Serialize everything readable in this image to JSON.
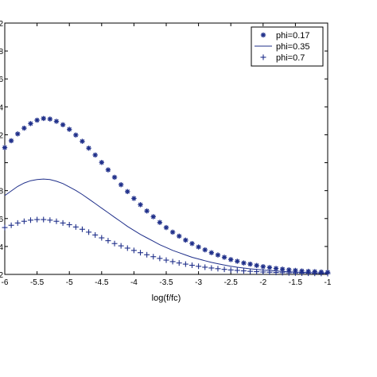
{
  "chart_data": {
    "type": "line",
    "xlabel": "log(f/fc)",
    "ylabel": "",
    "xlim": [
      -6,
      -1
    ],
    "ylim": [
      0,
      2.2
    ],
    "grid": false,
    "legend_position": "top-right",
    "x_ticks": [
      "-6",
      "-5.5",
      "-5",
      "-4.5",
      "-4",
      "-3.5",
      "-3",
      "-2.5",
      "-2",
      "-1.5",
      "-1"
    ],
    "y_ticks": [
      "2",
      "8",
      "6",
      "4",
      "2",
      "",
      "8",
      "6",
      "4",
      "2"
    ],
    "colors": {
      "series": "#1f2f8a"
    },
    "series": [
      {
        "name": "phi=0.17",
        "marker": "asterisk",
        "x": [
          -6.0,
          -5.9,
          -5.8,
          -5.7,
          -5.6,
          -5.5,
          -5.4,
          -5.3,
          -5.2,
          -5.1,
          -5.0,
          -4.9,
          -4.8,
          -4.7,
          -4.6,
          -4.5,
          -4.4,
          -4.3,
          -4.2,
          -4.1,
          -4.0,
          -3.9,
          -3.8,
          -3.7,
          -3.6,
          -3.5,
          -3.4,
          -3.3,
          -3.2,
          -3.1,
          -3.0,
          -2.9,
          -2.8,
          -2.7,
          -2.6,
          -2.5,
          -2.4,
          -2.3,
          -2.2,
          -2.1,
          -2.0,
          -1.9,
          -1.8,
          -1.7,
          -1.6,
          -1.5,
          -1.4,
          -1.3,
          -1.2,
          -1.1,
          -1.0
        ],
        "values": [
          1.11,
          1.17,
          1.23,
          1.28,
          1.32,
          1.35,
          1.365,
          1.36,
          1.34,
          1.31,
          1.27,
          1.22,
          1.165,
          1.105,
          1.045,
          0.98,
          0.915,
          0.85,
          0.785,
          0.725,
          0.665,
          0.61,
          0.555,
          0.505,
          0.455,
          0.41,
          0.37,
          0.335,
          0.3,
          0.27,
          0.24,
          0.215,
          0.19,
          0.17,
          0.15,
          0.13,
          0.115,
          0.1,
          0.09,
          0.078,
          0.068,
          0.06,
          0.052,
          0.046,
          0.04,
          0.035,
          0.03,
          0.027,
          0.024,
          0.021,
          0.019
        ]
      },
      {
        "name": "phi=0.35",
        "marker": "line",
        "x": [
          -6.0,
          -5.9,
          -5.8,
          -5.7,
          -5.6,
          -5.5,
          -5.4,
          -5.3,
          -5.2,
          -5.1,
          -5.0,
          -4.9,
          -4.8,
          -4.7,
          -4.6,
          -4.5,
          -4.4,
          -4.3,
          -4.2,
          -4.1,
          -4.0,
          -3.9,
          -3.8,
          -3.7,
          -3.6,
          -3.5,
          -3.4,
          -3.3,
          -3.2,
          -3.1,
          -3.0,
          -2.9,
          -2.8,
          -2.7,
          -2.6,
          -2.5,
          -2.4,
          -2.3,
          -2.2,
          -2.1,
          -2.0,
          -1.9,
          -1.8,
          -1.7,
          -1.6,
          -1.5,
          -1.4,
          -1.3,
          -1.2,
          -1.1,
          -1.0
        ],
        "values": [
          0.69,
          0.73,
          0.77,
          0.8,
          0.82,
          0.83,
          0.835,
          0.83,
          0.815,
          0.795,
          0.765,
          0.735,
          0.7,
          0.66,
          0.62,
          0.58,
          0.54,
          0.5,
          0.46,
          0.42,
          0.385,
          0.35,
          0.32,
          0.29,
          0.26,
          0.235,
          0.21,
          0.19,
          0.17,
          0.15,
          0.135,
          0.12,
          0.105,
          0.093,
          0.082,
          0.072,
          0.063,
          0.056,
          0.049,
          0.043,
          0.038,
          0.033,
          0.029,
          0.026,
          0.023,
          0.02,
          0.018,
          0.016,
          0.014,
          0.013,
          0.011
        ]
      },
      {
        "name": "phi=0.7",
        "marker": "plus",
        "x": [
          -6.0,
          -5.9,
          -5.8,
          -5.7,
          -5.6,
          -5.5,
          -5.4,
          -5.3,
          -5.2,
          -5.1,
          -5.0,
          -4.9,
          -4.8,
          -4.7,
          -4.6,
          -4.5,
          -4.4,
          -4.3,
          -4.2,
          -4.1,
          -4.0,
          -3.9,
          -3.8,
          -3.7,
          -3.6,
          -3.5,
          -3.4,
          -3.3,
          -3.2,
          -3.1,
          -3.0,
          -2.9,
          -2.8,
          -2.7,
          -2.6,
          -2.5,
          -2.4,
          -2.3,
          -2.2,
          -2.1,
          -2.0,
          -1.9,
          -1.8,
          -1.7,
          -1.6,
          -1.5,
          -1.4,
          -1.3,
          -1.2,
          -1.1,
          -1.0
        ],
        "values": [
          0.41,
          0.43,
          0.45,
          0.465,
          0.475,
          0.48,
          0.48,
          0.475,
          0.465,
          0.45,
          0.435,
          0.415,
          0.395,
          0.37,
          0.345,
          0.32,
          0.295,
          0.27,
          0.25,
          0.23,
          0.21,
          0.19,
          0.172,
          0.155,
          0.14,
          0.125,
          0.112,
          0.1,
          0.09,
          0.08,
          0.071,
          0.063,
          0.056,
          0.05,
          0.044,
          0.039,
          0.035,
          0.031,
          0.027,
          0.024,
          0.021,
          0.019,
          0.017,
          0.015,
          0.013,
          0.012,
          0.011,
          0.01,
          0.009,
          0.008,
          0.007
        ]
      }
    ]
  }
}
